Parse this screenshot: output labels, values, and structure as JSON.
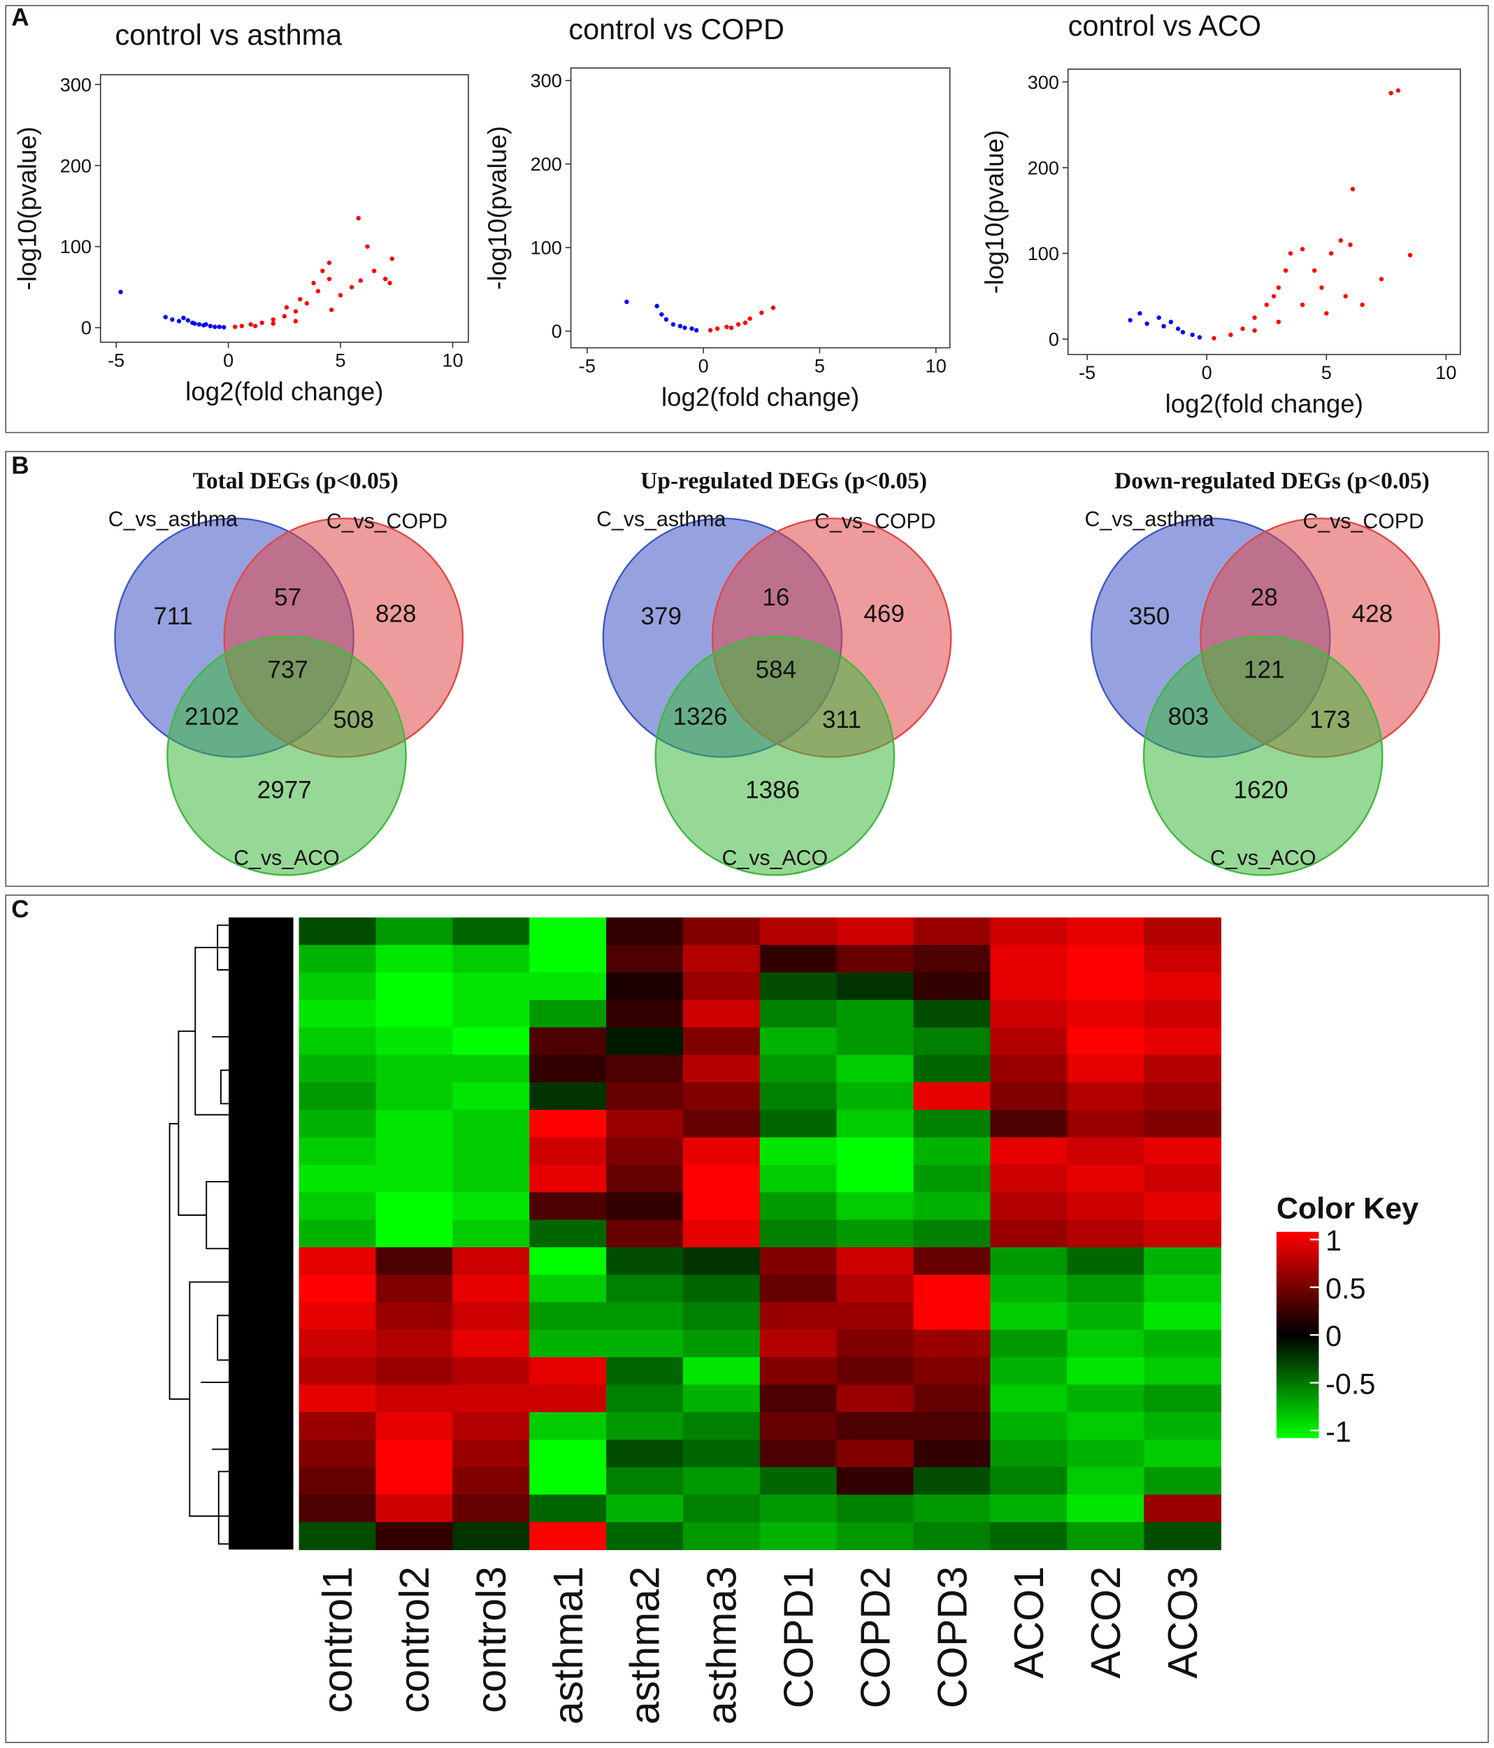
{
  "panel_labels": [
    "A",
    "B",
    "C"
  ],
  "chart_data": [
    {
      "type": "scatter",
      "title": "control vs asthma",
      "xlabel": "log2(fold change)",
      "ylabel": "-log10(pvalue)",
      "xlim": [
        -5.7,
        10.7
      ],
      "ylim": [
        -18,
        312
      ],
      "xticks": [
        -5,
        0,
        5,
        10
      ],
      "yticks": [
        0,
        100,
        200,
        300
      ],
      "series": [
        {
          "color": "#0000ff",
          "x": [
            -4.8,
            -2.8,
            -2.5,
            -2.2,
            -2,
            -1.8,
            -1.6,
            -1.5,
            -1.3,
            -1.1,
            -1,
            -0.8,
            -0.6,
            -0.4,
            -0.2
          ],
          "values": [
            44,
            13,
            10,
            8,
            12,
            9,
            6,
            5,
            4,
            3,
            4,
            2,
            1,
            1,
            0.5
          ]
        },
        {
          "color": "#ff0000",
          "x": [
            0.3,
            0.6,
            1,
            1.5,
            2,
            2.5,
            3,
            3.5,
            4,
            4.5,
            4.5,
            4.2,
            3.8,
            5,
            5.5,
            5.8,
            6.2,
            6.5,
            7,
            7.3,
            7.2,
            5.9,
            4.6,
            3,
            2,
            1.2,
            2.6,
            3.2
          ],
          "values": [
            1,
            2,
            4,
            6,
            10,
            14,
            20,
            30,
            45,
            60,
            80,
            70,
            55,
            40,
            50,
            135,
            100,
            70,
            60,
            85,
            55,
            58,
            22,
            8,
            5,
            2,
            25,
            35
          ]
        }
      ]
    },
    {
      "type": "scatter",
      "title": "control vs  COPD",
      "xlabel": "log2(fold change)",
      "ylabel": "-log10(pvalue)",
      "xlim": [
        -5.7,
        10.6
      ],
      "ylim": [
        -20,
        315
      ],
      "xticks": [
        -5,
        0,
        5,
        10
      ],
      "yticks": [
        0,
        100,
        200,
        300
      ],
      "series": [
        {
          "color": "#0000ff",
          "x": [
            -3.3,
            -2,
            -1.8,
            -1.6,
            -1.3,
            -1,
            -0.8,
            -0.5,
            -0.3
          ],
          "values": [
            35,
            30,
            20,
            14,
            8,
            6,
            4,
            3,
            1
          ]
        },
        {
          "color": "#ff0000",
          "x": [
            0.3,
            0.6,
            1,
            1.5,
            2,
            2.5,
            3,
            1.8,
            1.2
          ],
          "values": [
            1,
            3,
            5,
            8,
            15,
            22,
            28,
            10,
            4
          ]
        }
      ]
    },
    {
      "type": "scatter",
      "title": "control vs ACO",
      "xlabel": "log2(fold change)",
      "ylabel": "-log10(pvalue)",
      "xlim": [
        -5.8,
        10.6
      ],
      "ylim": [
        -18,
        315
      ],
      "xticks": [
        -5,
        0,
        5,
        10
      ],
      "yticks": [
        0,
        100,
        200,
        300
      ],
      "series": [
        {
          "color": "#0000ff",
          "x": [
            -3.2,
            -2.8,
            -2.5,
            -2,
            -1.8,
            -1.5,
            -1.2,
            -1,
            -0.6,
            -0.3
          ],
          "values": [
            22,
            30,
            18,
            25,
            15,
            20,
            12,
            8,
            5,
            2
          ]
        },
        {
          "color": "#ff0000",
          "x": [
            0.3,
            1,
            1.5,
            2,
            2.5,
            3,
            3.3,
            3.5,
            4,
            4.5,
            4.8,
            5.2,
            5.6,
            6,
            6.1,
            5.8,
            7.3,
            7.7,
            8,
            8.5,
            3,
            2,
            4,
            5,
            6.5,
            2.8
          ],
          "values": [
            1,
            5,
            12,
            25,
            40,
            60,
            80,
            100,
            105,
            80,
            60,
            100,
            115,
            110,
            175,
            50,
            70,
            287,
            290,
            98,
            20,
            10,
            40,
            30,
            40,
            50
          ]
        }
      ]
    },
    {
      "type": "venn",
      "title": "Total DEGs (p<0.05)",
      "sets": [
        "C_vs_asthma",
        "C_vs_COPD",
        "C_vs_ACO"
      ],
      "colors": [
        "#3f56c4",
        "#e04848",
        "#3fb83f"
      ],
      "values": [
        711,
        57,
        828,
        737,
        2102,
        508,
        2977
      ]
    },
    {
      "type": "venn",
      "title": "Up-regulated DEGs (p<0.05)",
      "sets": [
        "C_vs_asthma",
        "C_vs_COPD",
        "C_vs_ACO"
      ],
      "colors": [
        "#3f56c4",
        "#e04848",
        "#3fb83f"
      ],
      "values": [
        379,
        16,
        469,
        584,
        1326,
        311,
        1386
      ]
    },
    {
      "type": "venn",
      "title": "Down-regulated DEGs (p<0.05)",
      "sets": [
        "C_vs_asthma",
        "C_vs_COPD",
        "C_vs_ACO"
      ],
      "colors": [
        "#3f56c4",
        "#e04848",
        "#3fb83f"
      ],
      "values": [
        350,
        28,
        428,
        121,
        803,
        173,
        1620
      ]
    },
    {
      "type": "heatmap",
      "categories": [
        "control1",
        "control2",
        "control3",
        "asthma1",
        "asthma2",
        "asthma3",
        "COPD1",
        "COPD2",
        "COPD3",
        "ACO1",
        "ACO2",
        "ACO3"
      ],
      "colorbar_title": "Color Key",
      "zlim": [
        -1.08,
        1.08
      ],
      "zticks": [
        1,
        0.5,
        0,
        -0.5,
        -1
      ],
      "colors": {
        "low": "#00ff00",
        "mid": "#000000",
        "high": "#ff0000"
      },
      "values": [
        [
          -0.3,
          -0.6,
          -0.4,
          -1,
          0.2,
          0.5,
          0.7,
          0.8,
          0.6,
          0.8,
          0.9,
          0.7
        ],
        [
          -0.7,
          -0.9,
          -0.8,
          -1,
          0.3,
          0.7,
          0.2,
          0.4,
          0.3,
          0.9,
          1,
          0.8
        ],
        [
          -0.8,
          -1,
          -0.9,
          -0.9,
          0.1,
          0.6,
          -0.3,
          -0.2,
          0.2,
          0.9,
          1,
          0.9
        ],
        [
          -0.9,
          -1,
          -0.9,
          -0.6,
          0.2,
          0.8,
          -0.5,
          -0.6,
          -0.3,
          0.8,
          0.9,
          0.8
        ],
        [
          -0.8,
          -0.9,
          -1,
          0.3,
          -0.1,
          0.5,
          -0.7,
          -0.6,
          -0.5,
          0.7,
          1,
          0.9
        ],
        [
          -0.7,
          -0.8,
          -0.8,
          0.2,
          0.3,
          0.7,
          -0.6,
          -0.8,
          -0.4,
          0.6,
          0.9,
          0.7
        ],
        [
          -0.6,
          -0.8,
          -0.9,
          -0.2,
          0.4,
          0.5,
          -0.5,
          -0.7,
          0.9,
          0.5,
          0.7,
          0.6
        ],
        [
          -0.7,
          -0.9,
          -0.8,
          1,
          0.6,
          0.4,
          -0.4,
          -0.8,
          -0.5,
          0.3,
          0.6,
          0.5
        ],
        [
          -0.8,
          -0.9,
          -0.8,
          0.8,
          0.5,
          0.9,
          -0.9,
          -1,
          -0.7,
          0.9,
          0.8,
          0.9
        ],
        [
          -0.9,
          -0.9,
          -0.8,
          0.9,
          0.4,
          1,
          -0.8,
          -1,
          -0.6,
          0.8,
          0.9,
          0.8
        ],
        [
          -0.8,
          -1,
          -0.9,
          0.3,
          0.2,
          1,
          -0.6,
          -0.8,
          -0.7,
          0.7,
          0.8,
          0.9
        ],
        [
          -0.7,
          -1,
          -0.8,
          -0.4,
          0.4,
          0.9,
          -0.5,
          -0.6,
          -0.5,
          0.6,
          0.7,
          0.8
        ],
        [
          0.9,
          0.3,
          0.8,
          -1,
          -0.3,
          -0.2,
          0.5,
          0.8,
          0.4,
          -0.6,
          -0.4,
          -0.7
        ],
        [
          1,
          0.5,
          0.9,
          -0.8,
          -0.5,
          -0.4,
          0.4,
          0.7,
          1,
          -0.7,
          -0.6,
          -0.8
        ],
        [
          0.9,
          0.6,
          0.8,
          -0.6,
          -0.6,
          -0.5,
          0.6,
          0.6,
          1,
          -0.8,
          -0.7,
          -0.9
        ],
        [
          0.8,
          0.7,
          0.9,
          -0.7,
          -0.7,
          -0.6,
          0.7,
          0.5,
          0.6,
          -0.6,
          -0.8,
          -0.7
        ],
        [
          0.7,
          0.6,
          0.7,
          0.9,
          -0.4,
          -0.9,
          0.5,
          0.4,
          0.5,
          -0.7,
          -0.9,
          -0.8
        ],
        [
          0.9,
          0.8,
          0.8,
          0.8,
          -0.5,
          -0.7,
          0.3,
          0.6,
          0.4,
          -0.8,
          -0.7,
          -0.6
        ],
        [
          0.6,
          0.9,
          0.7,
          -0.8,
          -0.6,
          -0.5,
          0.4,
          0.3,
          0.3,
          -0.7,
          -0.8,
          -0.7
        ],
        [
          0.5,
          1,
          0.6,
          -1,
          -0.3,
          -0.4,
          0.3,
          0.5,
          0.2,
          -0.6,
          -0.7,
          -0.8
        ],
        [
          0.4,
          1,
          0.5,
          -1,
          -0.5,
          -0.6,
          -0.4,
          0.2,
          -0.3,
          -0.5,
          -0.8,
          -0.6
        ],
        [
          0.3,
          0.8,
          0.4,
          -0.4,
          -0.7,
          -0.5,
          -0.6,
          -0.5,
          -0.6,
          -0.7,
          -0.9,
          0.6
        ],
        [
          -0.3,
          0.2,
          -0.2,
          1,
          -0.4,
          -0.6,
          -0.7,
          -0.6,
          -0.5,
          -0.4,
          -0.6,
          -0.3
        ]
      ]
    }
  ]
}
